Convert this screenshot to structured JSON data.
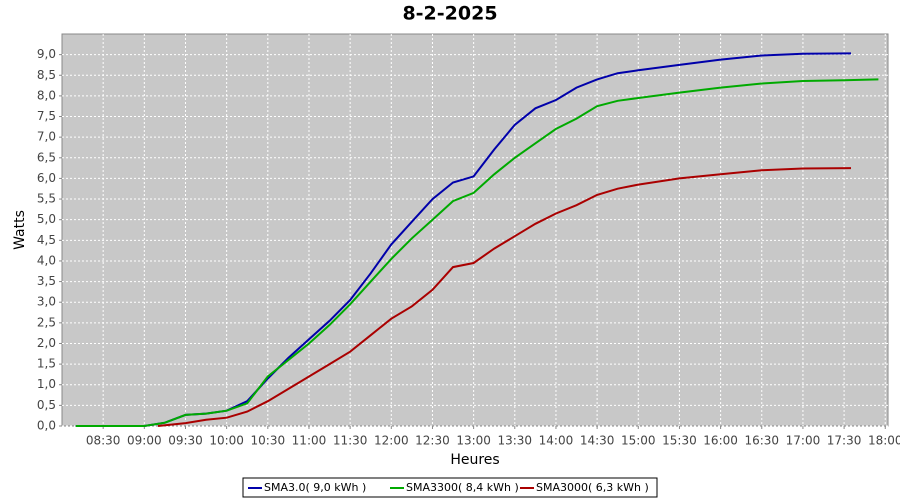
{
  "chart_data": {
    "type": "line",
    "title": "8-2-2025",
    "x_label": "Heures",
    "y_label": "Watts",
    "xlim": [
      "08:00",
      "18:02"
    ],
    "xticks": [
      "08:30",
      "09:00",
      "09:30",
      "10:00",
      "10:30",
      "11:00",
      "11:30",
      "12:00",
      "12:30",
      "13:00",
      "13:30",
      "14:00",
      "14:30",
      "15:00",
      "15:30",
      "16:00",
      "16:30",
      "17:00",
      "17:30",
      "18:00"
    ],
    "ylim": [
      0,
      9.5
    ],
    "yticks": [
      {
        "value": 0,
        "label": "0,0"
      },
      {
        "value": 0.5,
        "label": "0,5"
      },
      {
        "value": 1,
        "label": "1,0"
      },
      {
        "value": 1.5,
        "label": "1,5"
      },
      {
        "value": 2,
        "label": "2,0"
      },
      {
        "value": 2.5,
        "label": "2,5"
      },
      {
        "value": 3,
        "label": "3,0"
      },
      {
        "value": 3.5,
        "label": "3,5"
      },
      {
        "value": 4,
        "label": "4,0"
      },
      {
        "value": 4.5,
        "label": "4,5"
      },
      {
        "value": 5,
        "label": "5,0"
      },
      {
        "value": 5.5,
        "label": "5,5"
      },
      {
        "value": 6,
        "label": "6,0"
      },
      {
        "value": 6.5,
        "label": "6,5"
      },
      {
        "value": 7,
        "label": "7,0"
      },
      {
        "value": 7.5,
        "label": "7,5"
      },
      {
        "value": 8,
        "label": "8,0"
      },
      {
        "value": 8.5,
        "label": "8,5"
      },
      {
        "value": 9,
        "label": "9,0"
      }
    ],
    "grid": true,
    "legend": "bottom",
    "series": [
      {
        "name": "SMA3.0( 9,0 kWh )",
        "color": "#0000aa",
        "x": [
          "08:10",
          "08:30",
          "08:45",
          "09:00",
          "09:15",
          "09:30",
          "09:45",
          "10:00",
          "10:15",
          "10:30",
          "10:45",
          "11:00",
          "11:15",
          "11:30",
          "11:45",
          "12:00",
          "12:15",
          "12:30",
          "12:45",
          "13:00",
          "13:15",
          "13:30",
          "13:45",
          "14:00",
          "14:15",
          "14:30",
          "14:45",
          "15:00",
          "15:30",
          "16:00",
          "16:30",
          "17:00",
          "17:35"
        ],
        "values": [
          0,
          0,
          0,
          0,
          0.08,
          0.27,
          0.3,
          0.37,
          0.6,
          1.15,
          1.65,
          2.1,
          2.55,
          3.05,
          3.7,
          4.4,
          4.95,
          5.5,
          5.9,
          6.05,
          6.7,
          7.3,
          7.7,
          7.9,
          8.2,
          8.4,
          8.55,
          8.62,
          8.75,
          8.88,
          8.98,
          9.02,
          9.03
        ]
      },
      {
        "name": "SMA3300( 8,4 kWh )",
        "color": "#00aa00",
        "x": [
          "08:10",
          "08:30",
          "08:45",
          "09:00",
          "09:15",
          "09:30",
          "09:45",
          "10:00",
          "10:15",
          "10:30",
          "10:45",
          "11:00",
          "11:15",
          "11:30",
          "11:45",
          "12:00",
          "12:15",
          "12:30",
          "12:45",
          "13:00",
          "13:15",
          "13:30",
          "13:45",
          "14:00",
          "14:15",
          "14:30",
          "14:45",
          "15:00",
          "15:30",
          "16:00",
          "16:30",
          "17:00",
          "17:30",
          "17:55"
        ],
        "values": [
          0,
          0,
          0,
          0,
          0.08,
          0.27,
          0.3,
          0.37,
          0.55,
          1.2,
          1.6,
          2.0,
          2.45,
          2.95,
          3.5,
          4.05,
          4.55,
          5.0,
          5.45,
          5.65,
          6.1,
          6.5,
          6.85,
          7.2,
          7.45,
          7.75,
          7.88,
          7.95,
          8.08,
          8.2,
          8.3,
          8.36,
          8.38,
          8.4
        ]
      },
      {
        "name": "SMA3000( 6,3 kWh )",
        "color": "#aa0000",
        "x": [
          "09:10",
          "09:30",
          "09:45",
          "10:00",
          "10:15",
          "10:30",
          "10:45",
          "11:00",
          "11:15",
          "11:30",
          "11:45",
          "12:00",
          "12:15",
          "12:30",
          "12:45",
          "13:00",
          "13:15",
          "13:30",
          "13:45",
          "14:00",
          "14:15",
          "14:30",
          "14:45",
          "15:00",
          "15:30",
          "16:00",
          "16:30",
          "17:00",
          "17:35"
        ],
        "values": [
          0,
          0.07,
          0.15,
          0.2,
          0.35,
          0.6,
          0.9,
          1.2,
          1.5,
          1.8,
          2.2,
          2.6,
          2.9,
          3.3,
          3.85,
          3.95,
          4.3,
          4.6,
          4.9,
          5.15,
          5.35,
          5.6,
          5.75,
          5.85,
          6.0,
          6.1,
          6.2,
          6.24,
          6.25
        ]
      }
    ]
  }
}
